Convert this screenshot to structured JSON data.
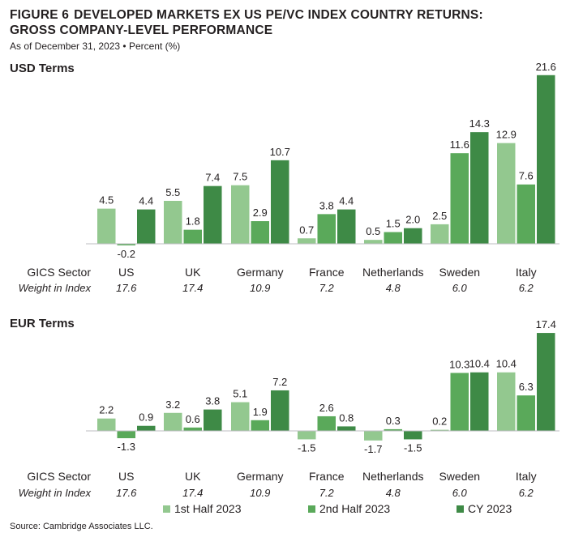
{
  "figure": {
    "number": "FIGURE 6",
    "title_line1": "DEVELOPED MARKETS EX US PE/VC INDEX COUNTRY RETURNS:",
    "title_line2": "GROSS COMPANY-LEVEL PERFORMANCE",
    "subtitle": "As of December 31, 2023 • Percent (%)",
    "source": "Source: Cambridge Associates LLC."
  },
  "colors": {
    "half1": "#93c88f",
    "half2": "#5aa95a",
    "cy": "#3e8a46",
    "axis": "#bcbec0",
    "text": "#231f20"
  },
  "legend": [
    {
      "label": "1st Half 2023",
      "color": "#93c88f"
    },
    {
      "label": "2nd Half 2023",
      "color": "#5aa95a"
    },
    {
      "label": "CY 2023",
      "color": "#3e8a46"
    }
  ],
  "chart_data": [
    {
      "type": "bar",
      "title": "USD Terms",
      "row_label_categories": "GICS Sector",
      "row_label_weights": "Weight in Index",
      "categories": [
        "US",
        "UK",
        "Germany",
        "France",
        "Netherlands",
        "Sweden",
        "Italy"
      ],
      "weights": [
        "17.6",
        "17.4",
        "10.9",
        "7.2",
        "4.8",
        "6.0",
        "6.2"
      ],
      "series": [
        {
          "name": "1st Half 2023",
          "values": [
            4.5,
            5.5,
            7.5,
            0.7,
            0.5,
            2.5,
            12.9
          ]
        },
        {
          "name": "2nd Half 2023",
          "values": [
            -0.2,
            1.8,
            2.9,
            3.8,
            1.5,
            11.6,
            7.6
          ]
        },
        {
          "name": "CY 2023",
          "values": [
            4.4,
            7.4,
            10.7,
            4.4,
            2.0,
            14.3,
            21.6
          ]
        }
      ],
      "labels": [
        [
          "4.5",
          "5.5",
          "7.5",
          "0.7",
          "0.5",
          "2.5",
          "12.9"
        ],
        [
          "-0.2",
          "1.8",
          "2.9",
          "3.8",
          "1.5",
          "11.6",
          "7.6"
        ],
        [
          "4.4",
          "7.4",
          "10.7",
          "4.4",
          "2.0",
          "14.3",
          "21.6"
        ]
      ]
    },
    {
      "type": "bar",
      "title": "EUR Terms",
      "row_label_categories": "GICS Sector",
      "row_label_weights": "Weight in Index",
      "categories": [
        "US",
        "UK",
        "Germany",
        "France",
        "Netherlands",
        "Sweden",
        "Italy"
      ],
      "weights": [
        "17.6",
        "17.4",
        "10.9",
        "7.2",
        "4.8",
        "6.0",
        "6.2"
      ],
      "series": [
        {
          "name": "1st Half 2023",
          "values": [
            2.2,
            3.2,
            5.1,
            -1.5,
            -1.7,
            0.2,
            10.4
          ]
        },
        {
          "name": "2nd Half 2023",
          "values": [
            -1.3,
            0.6,
            1.9,
            2.6,
            0.3,
            10.3,
            6.3
          ]
        },
        {
          "name": "CY 2023",
          "values": [
            0.9,
            3.8,
            7.2,
            0.8,
            -1.5,
            10.4,
            17.4
          ]
        }
      ],
      "labels": [
        [
          "2.2",
          "3.2",
          "5.1",
          "-1.5",
          "-1.7",
          "0.2",
          "10.4"
        ],
        [
          "-1.3",
          "0.6",
          "1.9",
          "2.6",
          "0.3",
          "10.3",
          "6.3"
        ],
        [
          "0.9",
          "3.8",
          "7.2",
          "0.8",
          "-1.5",
          "10.4",
          "17.4"
        ]
      ]
    }
  ]
}
